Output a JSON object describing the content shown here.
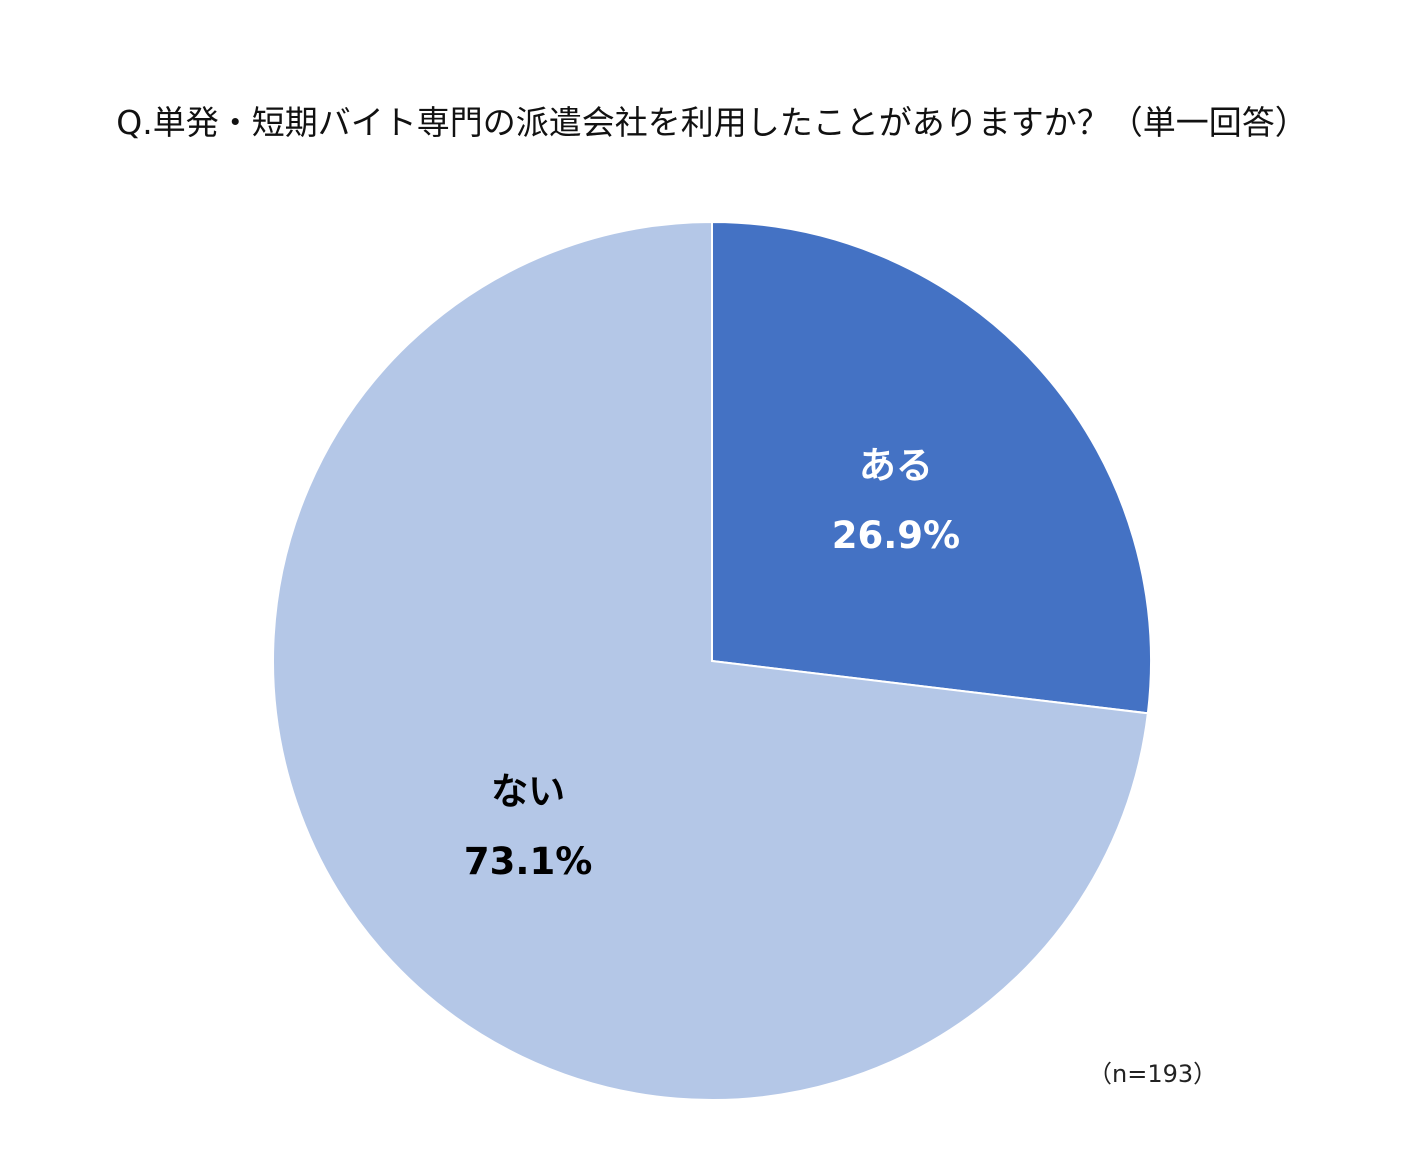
{
  "chart_data": {
    "type": "pie",
    "title": "Q.単発・短期バイト専門の派遣会社を利用したことがありますか？（単一回答）",
    "note": "（n=193）",
    "start_angle_deg": 0,
    "direction": "clockwise",
    "slices": [
      {
        "label": "ある",
        "value": 26.9,
        "value_label": "26.9%",
        "color": "#4472C4",
        "text_color": "#FFFFFF"
      },
      {
        "label": "ない",
        "value": 73.1,
        "value_label": "73.1%",
        "color": "#B4C7E7",
        "text_color": "#000000"
      }
    ]
  }
}
